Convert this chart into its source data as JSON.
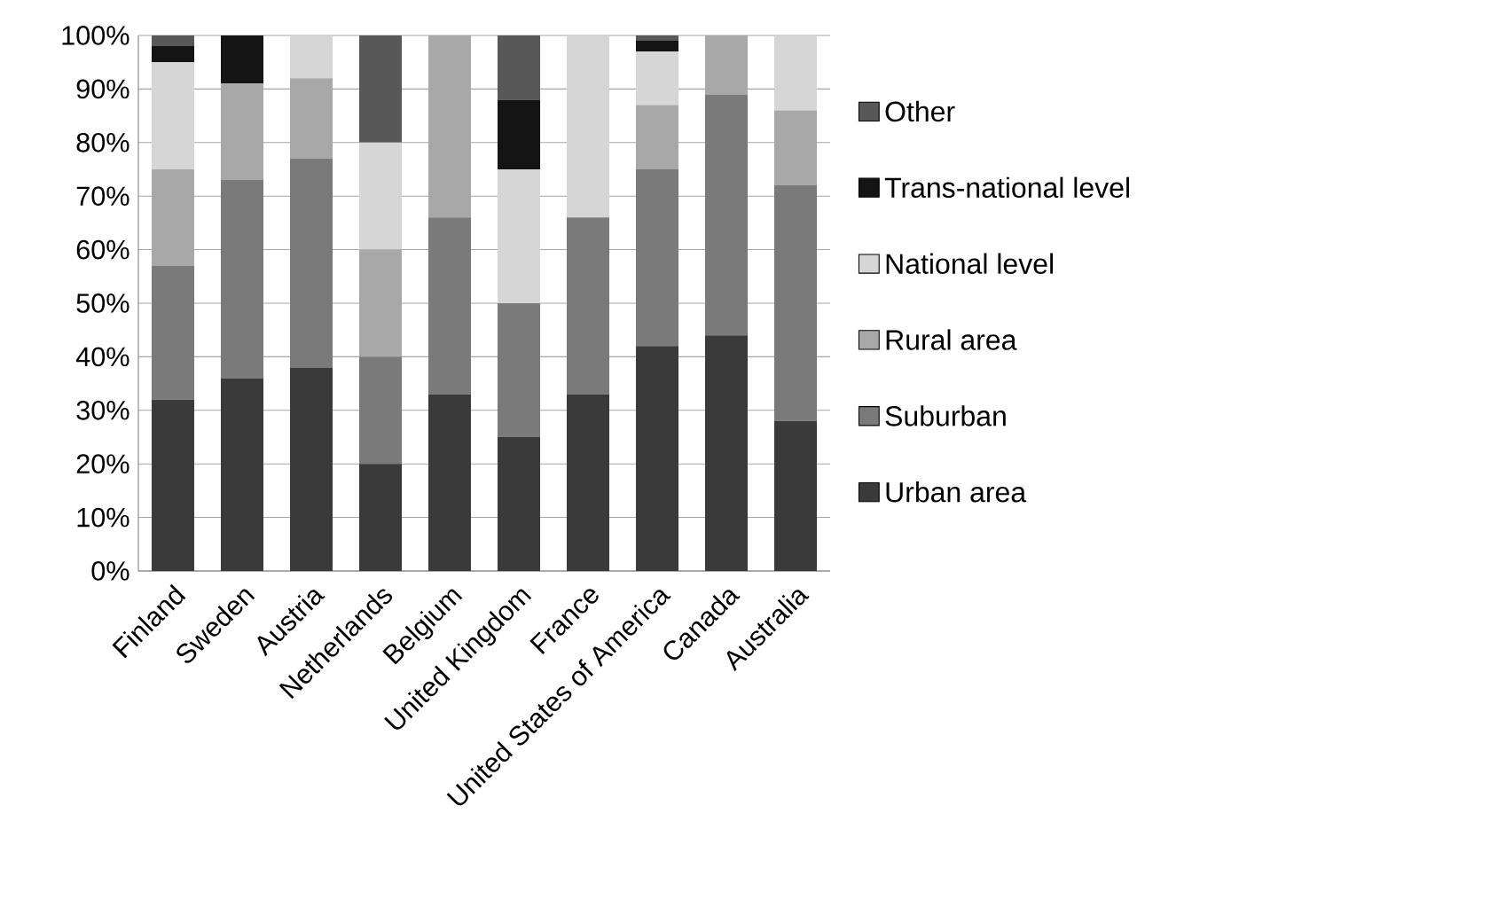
{
  "chart_data": {
    "type": "bar",
    "stacked": true,
    "categories": [
      "Finland",
      "Sweden",
      "Austria",
      "Netherlands",
      "Belgium",
      "United Kingdom",
      "France",
      "United States of America",
      "Canada",
      "Australia"
    ],
    "series": [
      {
        "name": "Urban area",
        "color": "#3a3a3a",
        "values": [
          32,
          36,
          38,
          20,
          33,
          25,
          33,
          42,
          44,
          28
        ]
      },
      {
        "name": "Suburban",
        "color": "#7a7a7a",
        "values": [
          25,
          37,
          39,
          20,
          33,
          25,
          33,
          33,
          45,
          44
        ]
      },
      {
        "name": "Rural area",
        "color": "#a8a8a8",
        "values": [
          18,
          18,
          15,
          20,
          34,
          0,
          0,
          12,
          11,
          14
        ]
      },
      {
        "name": "National level",
        "color": "#d6d6d6",
        "values": [
          20,
          0,
          8,
          20,
          0,
          25,
          34,
          10,
          0,
          14
        ]
      },
      {
        "name": "Trans-national level",
        "color": "#141414",
        "values": [
          3,
          9,
          0,
          0,
          0,
          13,
          0,
          2,
          0,
          0
        ]
      },
      {
        "name": "Other",
        "color": "#585858",
        "values": [
          2,
          0,
          0,
          20,
          0,
          12,
          0,
          1,
          0,
          0
        ]
      }
    ],
    "ylim": [
      0,
      100
    ],
    "yticks": [
      {
        "value": 0,
        "label": "0%"
      },
      {
        "value": 10,
        "label": "10%"
      },
      {
        "value": 20,
        "label": "20%"
      },
      {
        "value": 30,
        "label": "30%"
      },
      {
        "value": 40,
        "label": "40%"
      },
      {
        "value": 50,
        "label": "50%"
      },
      {
        "value": 60,
        "label": "60%"
      },
      {
        "value": 70,
        "label": "70%"
      },
      {
        "value": 80,
        "label": "80%"
      },
      {
        "value": 90,
        "label": "90%"
      },
      {
        "value": 100,
        "label": "100%"
      }
    ],
    "grid": "y",
    "legend": "right"
  }
}
